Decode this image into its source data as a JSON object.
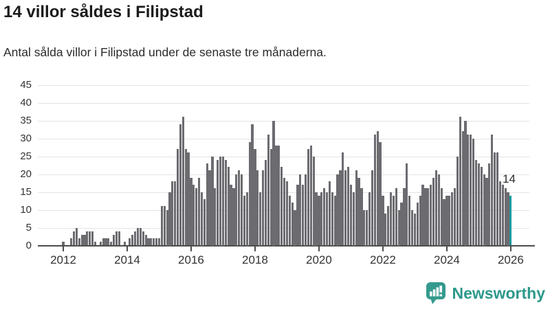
{
  "header": {
    "title": "14 villor såldes i Filipstad",
    "subtitle": "Antal sålda villor i Filipstad under de senaste tre månaderna."
  },
  "chart_data": {
    "type": "bar",
    "title": "14 villor såldes i Filipstad",
    "xlabel": "",
    "ylabel": "",
    "x_start_month": "2012-01",
    "x_end_month": "2026-01",
    "x_tick_labels": [
      "2012",
      "2014",
      "2016",
      "2018",
      "2020",
      "2022",
      "2024",
      "2026"
    ],
    "y_ticks": [
      0,
      5,
      10,
      15,
      20,
      25,
      30,
      35,
      40,
      45
    ],
    "ylim": [
      0,
      45
    ],
    "grid": true,
    "legend_position": "none",
    "bar_color": "#6b6b70",
    "highlight_color": "#12989e",
    "values": [
      1,
      0,
      0,
      2,
      4,
      5,
      2,
      3,
      3,
      4,
      4,
      4,
      1,
      0,
      1,
      2,
      2,
      2,
      1,
      3,
      4,
      4,
      0,
      1,
      0,
      2,
      3,
      4,
      5,
      5,
      4,
      3,
      2,
      2,
      2,
      2,
      2,
      11,
      11,
      10,
      15,
      18,
      18,
      27,
      34,
      36,
      27,
      26,
      19,
      17,
      16,
      19,
      15,
      13,
      23,
      21,
      25,
      16,
      24,
      25,
      25,
      24,
      22,
      17,
      16,
      20,
      21,
      20,
      14,
      15,
      29,
      34,
      27,
      21,
      15,
      21,
      24,
      31,
      27,
      35,
      28,
      28,
      22,
      19,
      18,
      14,
      12,
      10,
      17,
      20,
      17,
      20,
      27,
      28,
      25,
      15,
      14,
      15,
      16,
      15,
      18,
      15,
      14,
      20,
      21,
      26,
      21,
      22,
      17,
      15,
      21,
      19,
      16,
      10,
      10,
      15,
      21,
      31,
      32,
      29,
      14,
      9,
      11,
      15,
      14,
      16,
      10,
      12,
      16,
      23,
      14,
      10,
      9,
      12,
      14,
      17,
      16,
      16,
      17,
      19,
      21,
      20,
      16,
      13,
      14,
      14,
      15,
      16,
      25,
      36,
      32,
      35,
      31,
      31,
      30,
      24,
      23,
      22,
      20,
      19,
      23,
      31,
      26,
      26,
      18,
      17,
      16,
      15,
      14
    ],
    "highlight": {
      "index": 168,
      "value": 14,
      "label": "14"
    }
  },
  "annotation": {
    "label": "14"
  },
  "footer": {
    "brand": "Newsworthy"
  },
  "colors": {
    "bar": "#6b6b70",
    "highlight": "#12989e",
    "logo": "#359a8e",
    "wordmark": "#2d988b",
    "grid": "#e4e4e6",
    "axis": "#4d4d4d"
  }
}
